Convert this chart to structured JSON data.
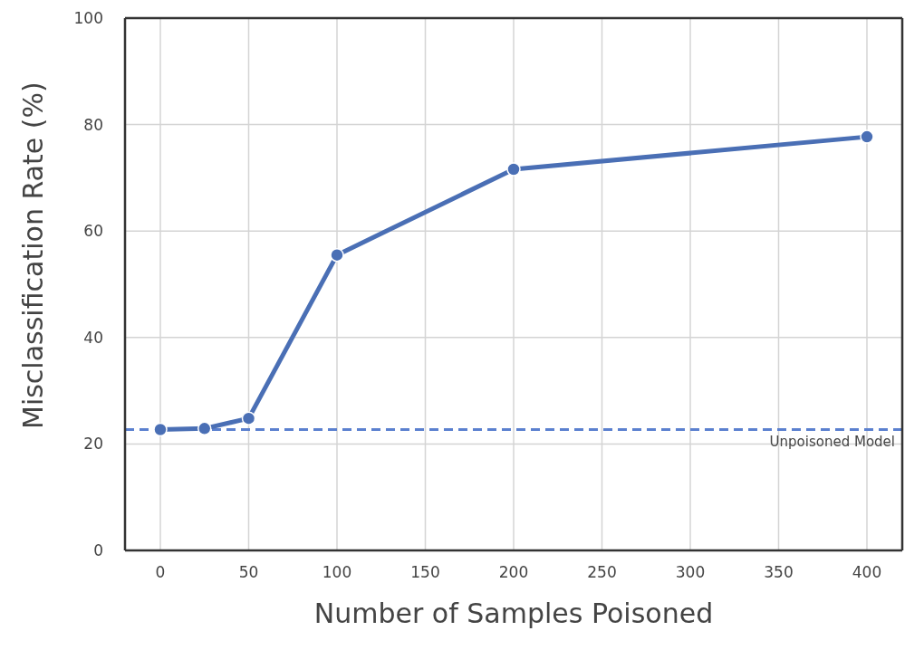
{
  "chart_data": {
    "type": "line",
    "xlabel": "Number of Samples Poisoned",
    "ylabel": "Misclassification Rate (%)",
    "x": [
      0,
      25,
      50,
      100,
      200,
      400
    ],
    "series": [
      {
        "color": "#4a6fb5",
        "values": [
          22.7,
          22.9,
          24.8,
          55.5,
          71.6,
          77.7
        ]
      }
    ],
    "xlim": [
      -20,
      420
    ],
    "ylim": [
      0,
      100
    ],
    "xticks": [
      0,
      50,
      100,
      150,
      200,
      250,
      300,
      350,
      400
    ],
    "yticks": [
      0,
      20,
      40,
      60,
      80,
      100
    ],
    "grid": true,
    "marker": "circle",
    "line_style": "solid",
    "ref_lines": [
      {
        "axis": "y",
        "value": 22.7,
        "label": "Unpoisoned Model",
        "color": "#5b80cf",
        "line_style": "dashed"
      }
    ]
  }
}
